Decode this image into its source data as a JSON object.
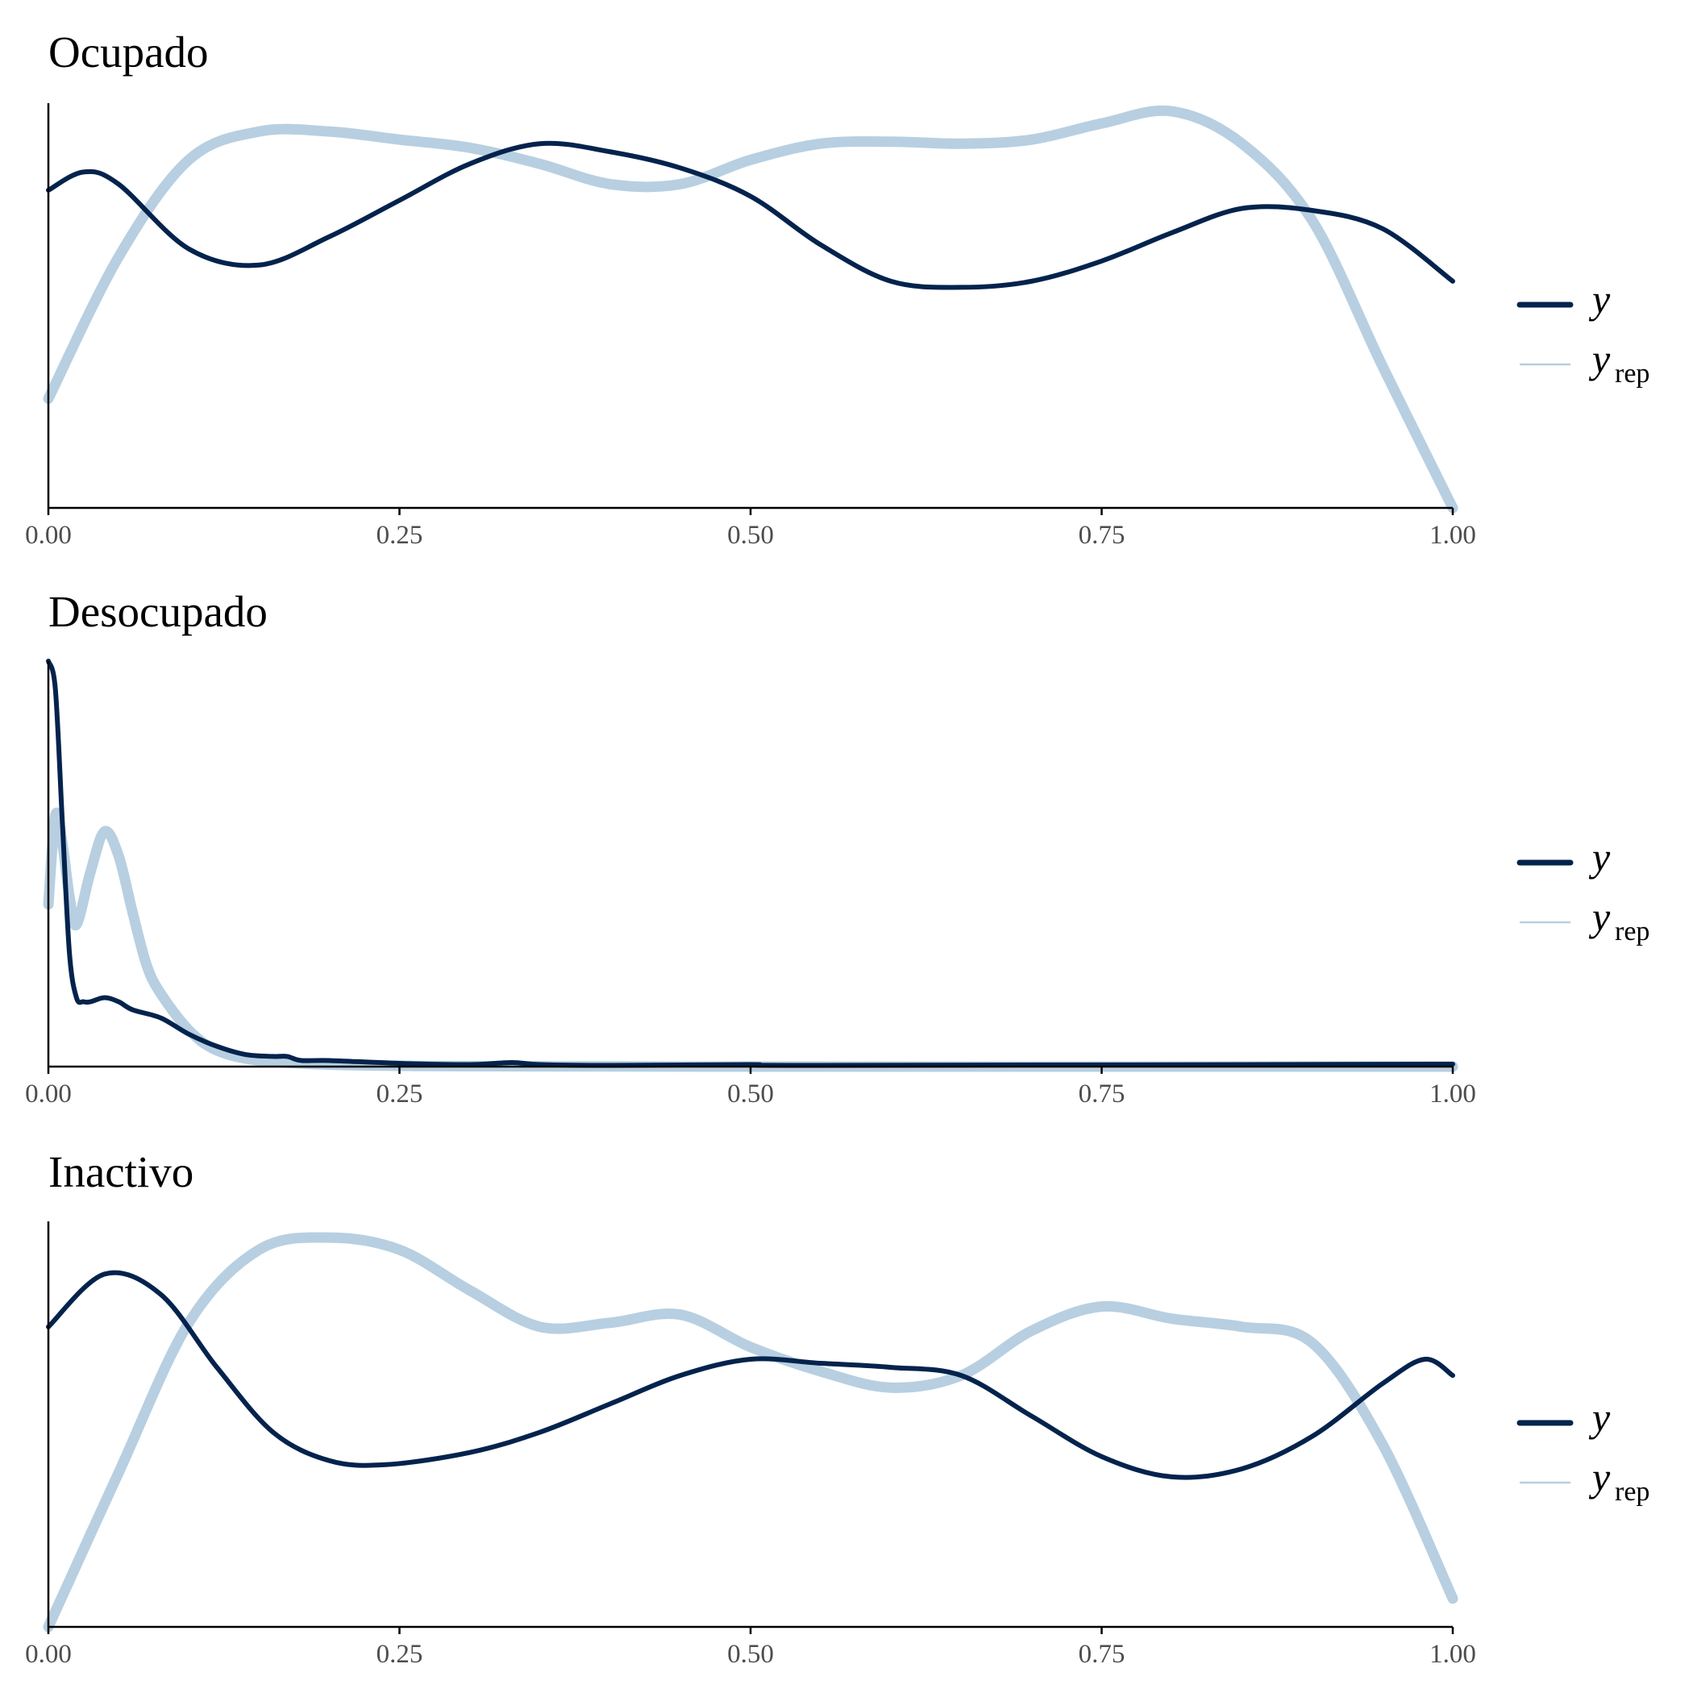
{
  "colors": {
    "y": "#03234d",
    "yrep": "#b7cfe1",
    "axis": "#000000",
    "tick_label": "#4d4d4d"
  },
  "legend": {
    "y_label": "y",
    "yrep_label": "y",
    "yrep_subscript": "rep"
  },
  "chart_data": [
    {
      "type": "line",
      "title": "Ocupado",
      "xlim": [
        0,
        1
      ],
      "ylim": [
        0,
        1
      ],
      "xticks": [
        0,
        0.25,
        0.5,
        0.75,
        1
      ],
      "xtick_labels": [
        "0.00",
        "0.25",
        "0.50",
        "0.75",
        "1.00"
      ],
      "legend_position": "right",
      "series": [
        {
          "name": "y",
          "x": [
            0,
            0.025,
            0.05,
            0.1,
            0.15,
            0.2,
            0.25,
            0.3,
            0.35,
            0.4,
            0.45,
            0.5,
            0.55,
            0.6,
            0.65,
            0.7,
            0.75,
            0.8,
            0.85,
            0.9,
            0.95,
            1.0
          ],
          "values": [
            0.785,
            0.83,
            0.8,
            0.64,
            0.6,
            0.67,
            0.76,
            0.85,
            0.9,
            0.88,
            0.84,
            0.77,
            0.65,
            0.56,
            0.545,
            0.56,
            0.61,
            0.68,
            0.74,
            0.735,
            0.69,
            0.56
          ]
        },
        {
          "name": "yrep",
          "x": [
            0,
            0.05,
            0.1,
            0.15,
            0.2,
            0.25,
            0.3,
            0.35,
            0.4,
            0.45,
            0.5,
            0.55,
            0.6,
            0.65,
            0.7,
            0.75,
            0.8,
            0.85,
            0.9,
            0.95,
            1.0
          ],
          "values": [
            0.27,
            0.62,
            0.86,
            0.93,
            0.93,
            0.91,
            0.89,
            0.85,
            0.8,
            0.8,
            0.86,
            0.9,
            0.905,
            0.9,
            0.91,
            0.95,
            0.98,
            0.9,
            0.71,
            0.35,
            0.0
          ]
        }
      ]
    },
    {
      "type": "line",
      "title": "Desocupado",
      "xlim": [
        0,
        1
      ],
      "ylim": [
        0,
        1
      ],
      "xticks": [
        0,
        0.25,
        0.5,
        0.75,
        1
      ],
      "xtick_labels": [
        "0.00",
        "0.25",
        "0.50",
        "0.75",
        "1.00"
      ],
      "legend_position": "right",
      "series": [
        {
          "name": "y",
          "x": [
            0,
            0.005,
            0.01,
            0.015,
            0.02,
            0.025,
            0.03,
            0.04,
            0.05,
            0.06,
            0.08,
            0.1,
            0.12,
            0.14,
            0.16,
            0.17,
            0.18,
            0.2,
            0.25,
            0.3,
            0.33,
            0.35,
            0.4,
            0.5,
            0.55,
            1.0
          ],
          "values": [
            1.0,
            0.93,
            0.6,
            0.28,
            0.17,
            0.16,
            0.16,
            0.17,
            0.16,
            0.14,
            0.12,
            0.08,
            0.05,
            0.03,
            0.025,
            0.025,
            0.015,
            0.015,
            0.008,
            0.005,
            0.01,
            0.005,
            0.003,
            0.005,
            0.003,
            0.006
          ]
        },
        {
          "name": "yrep",
          "x": [
            0,
            0.005,
            0.01,
            0.015,
            0.02,
            0.03,
            0.04,
            0.05,
            0.06,
            0.07,
            0.08,
            0.1,
            0.12,
            0.15,
            0.2,
            0.25,
            0.3,
            0.5,
            1.0
          ],
          "values": [
            0.4,
            0.62,
            0.55,
            0.42,
            0.35,
            0.48,
            0.58,
            0.52,
            0.38,
            0.25,
            0.18,
            0.09,
            0.04,
            0.015,
            0.005,
            0.002,
            0.001,
            0.0,
            0.0
          ]
        }
      ]
    },
    {
      "type": "line",
      "title": "Inactivo",
      "xlim": [
        0,
        1
      ],
      "ylim": [
        0,
        1
      ],
      "xticks": [
        0,
        0.25,
        0.5,
        0.75,
        1
      ],
      "xtick_labels": [
        "0.00",
        "0.25",
        "0.50",
        "0.75",
        "1.00"
      ],
      "legend_position": "right",
      "series": [
        {
          "name": "y",
          "x": [
            0,
            0.04,
            0.08,
            0.12,
            0.16,
            0.2,
            0.24,
            0.3,
            0.35,
            0.4,
            0.45,
            0.5,
            0.55,
            0.6,
            0.65,
            0.7,
            0.75,
            0.8,
            0.85,
            0.9,
            0.95,
            0.98,
            1.0
          ],
          "values": [
            0.74,
            0.87,
            0.82,
            0.64,
            0.48,
            0.41,
            0.4,
            0.43,
            0.48,
            0.55,
            0.62,
            0.66,
            0.65,
            0.64,
            0.62,
            0.52,
            0.42,
            0.37,
            0.39,
            0.47,
            0.6,
            0.66,
            0.62
          ]
        },
        {
          "name": "yrep",
          "x": [
            0,
            0.05,
            0.1,
            0.15,
            0.2,
            0.25,
            0.3,
            0.35,
            0.4,
            0.45,
            0.5,
            0.55,
            0.6,
            0.65,
            0.7,
            0.75,
            0.8,
            0.85,
            0.9,
            0.95,
            1.0
          ],
          "values": [
            0.0,
            0.38,
            0.75,
            0.93,
            0.96,
            0.93,
            0.83,
            0.74,
            0.75,
            0.77,
            0.69,
            0.63,
            0.59,
            0.62,
            0.73,
            0.79,
            0.76,
            0.74,
            0.7,
            0.45,
            0.07
          ]
        }
      ]
    }
  ]
}
